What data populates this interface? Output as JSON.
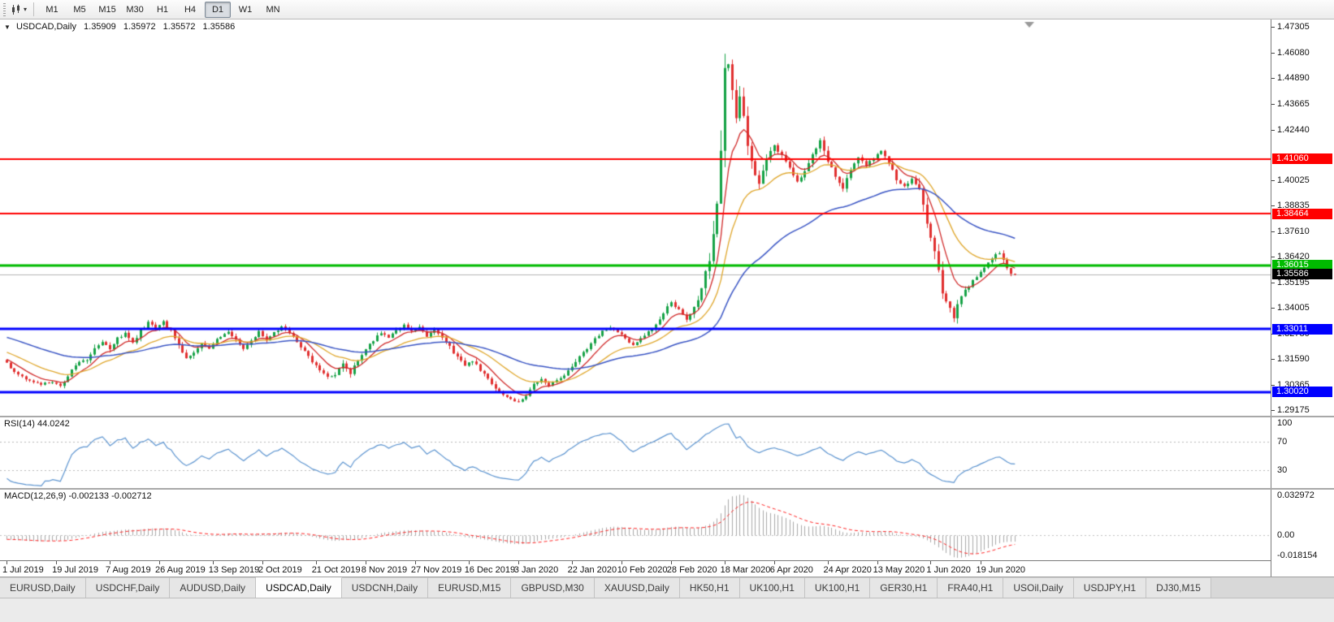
{
  "toolbar": {
    "timeframes": [
      "M1",
      "M5",
      "M15",
      "M30",
      "H1",
      "H4",
      "D1",
      "W1",
      "MN"
    ],
    "active_timeframe": "D1"
  },
  "chart_header": {
    "symbol_line": "USDCAD,Daily",
    "open": "1.35909",
    "high": "1.35972",
    "low": "1.35572",
    "close": "1.35586"
  },
  "chart_data": {
    "type": "candlestick",
    "symbol": "USDCAD",
    "timeframe": "Daily",
    "quote": {
      "open": 1.35909,
      "high": 1.35972,
      "low": 1.35572,
      "close": 1.35586
    },
    "y_range": [
      1.289,
      1.4765
    ],
    "candle_count": 265,
    "x_label_step": 13.42,
    "x_labels": [
      "1 Jul 2019",
      "19 Jul 2019",
      "7 Aug 2019",
      "26 Aug 2019",
      "13 Sep 2019",
      "2 Oct 2019",
      "21 Oct 2019",
      "8 Nov 2019",
      "27 Nov 2019",
      "16 Dec 2019",
      "3 Jan 2020",
      "22 Jan 2020",
      "10 Feb 2020",
      "28 Feb 2020",
      "18 Mar 2020",
      "6 Apr 2020",
      "24 Apr 2020",
      "13 May 2020",
      "1 Jun 2020",
      "19 Jun 2020"
    ],
    "close_anchors": [
      [
        0,
        1.3142
      ],
      [
        2,
        1.3095
      ],
      [
        5,
        1.306
      ],
      [
        9,
        1.304
      ],
      [
        12,
        1.3052
      ],
      [
        14,
        1.303
      ],
      [
        16,
        1.308
      ],
      [
        18,
        1.3135
      ],
      [
        21,
        1.3155
      ],
      [
        23,
        1.3215
      ],
      [
        25,
        1.3235
      ],
      [
        27,
        1.3205
      ],
      [
        29,
        1.3255
      ],
      [
        31,
        1.328
      ],
      [
        33,
        1.324
      ],
      [
        35,
        1.329
      ],
      [
        37,
        1.333
      ],
      [
        39,
        1.3305
      ],
      [
        41,
        1.3335
      ],
      [
        43,
        1.329
      ],
      [
        45,
        1.3225
      ],
      [
        47,
        1.3165
      ],
      [
        49,
        1.3185
      ],
      [
        51,
        1.3235
      ],
      [
        53,
        1.3205
      ],
      [
        55,
        1.3255
      ],
      [
        58,
        1.329
      ],
      [
        60,
        1.3245
      ],
      [
        62,
        1.321
      ],
      [
        64,
        1.325
      ],
      [
        66,
        1.3285
      ],
      [
        68,
        1.3245
      ],
      [
        70,
        1.328
      ],
      [
        72,
        1.331
      ],
      [
        74,
        1.3285
      ],
      [
        76,
        1.3245
      ],
      [
        78,
        1.3195
      ],
      [
        80,
        1.3145
      ],
      [
        82,
        1.3105
      ],
      [
        84,
        1.307
      ],
      [
        86,
        1.3085
      ],
      [
        88,
        1.3135
      ],
      [
        90,
        1.309
      ],
      [
        92,
        1.315
      ],
      [
        94,
        1.3205
      ],
      [
        96,
        1.3245
      ],
      [
        98,
        1.3285
      ],
      [
        100,
        1.326
      ],
      [
        102,
        1.3295
      ],
      [
        104,
        1.332
      ],
      [
        106,
        1.329
      ],
      [
        108,
        1.331
      ],
      [
        110,
        1.327
      ],
      [
        112,
        1.3295
      ],
      [
        114,
        1.3255
      ],
      [
        116,
        1.3215
      ],
      [
        118,
        1.3165
      ],
      [
        120,
        1.3125
      ],
      [
        122,
        1.315
      ],
      [
        124,
        1.3105
      ],
      [
        126,
        1.306
      ],
      [
        128,
        1.3015
      ],
      [
        130,
        1.2985
      ],
      [
        132,
        1.2965
      ],
      [
        134,
        1.2955
      ],
      [
        136,
        1.299
      ],
      [
        138,
        1.304
      ],
      [
        140,
        1.306
      ],
      [
        142,
        1.3035
      ],
      [
        144,
        1.3055
      ],
      [
        146,
        1.3085
      ],
      [
        148,
        1.312
      ],
      [
        150,
        1.3165
      ],
      [
        152,
        1.321
      ],
      [
        154,
        1.3255
      ],
      [
        156,
        1.329
      ],
      [
        158,
        1.331
      ],
      [
        160,
        1.3285
      ],
      [
        162,
        1.3255
      ],
      [
        164,
        1.3225
      ],
      [
        166,
        1.3255
      ],
      [
        168,
        1.3285
      ],
      [
        170,
        1.332
      ],
      [
        172,
        1.338
      ],
      [
        174,
        1.343
      ],
      [
        176,
        1.339
      ],
      [
        178,
        1.3345
      ],
      [
        180,
        1.3395
      ],
      [
        182,
        1.349
      ],
      [
        184,
        1.364
      ],
      [
        185,
        1.377
      ],
      [
        186,
        1.392
      ],
      [
        187,
        1.42
      ],
      [
        188,
        1.449
      ],
      [
        189,
        1.458
      ],
      [
        190,
        1.445
      ],
      [
        191,
        1.428
      ],
      [
        192,
        1.442
      ],
      [
        193,
        1.43
      ],
      [
        195,
        1.408
      ],
      [
        197,
        1.399
      ],
      [
        199,
        1.41
      ],
      [
        201,
        1.417
      ],
      [
        203,
        1.412
      ],
      [
        205,
        1.406
      ],
      [
        207,
        1.399
      ],
      [
        209,
        1.405
      ],
      [
        211,
        1.413
      ],
      [
        213,
        1.419
      ],
      [
        215,
        1.41
      ],
      [
        217,
        1.402
      ],
      [
        219,
        1.397
      ],
      [
        221,
        1.405
      ],
      [
        223,
        1.411
      ],
      [
        225,
        1.407
      ],
      [
        227,
        1.411
      ],
      [
        229,
        1.414
      ],
      [
        231,
        1.408
      ],
      [
        233,
        1.401
      ],
      [
        235,
        1.397
      ],
      [
        237,
        1.401
      ],
      [
        239,
        1.395
      ],
      [
        241,
        1.381
      ],
      [
        243,
        1.365
      ],
      [
        245,
        1.348
      ],
      [
        247,
        1.339
      ],
      [
        248,
        1.335
      ],
      [
        249,
        1.342
      ],
      [
        251,
        1.348
      ],
      [
        253,
        1.353
      ],
      [
        255,
        1.357
      ],
      [
        257,
        1.361
      ],
      [
        259,
        1.365
      ],
      [
        260,
        1.366
      ],
      [
        261,
        1.362
      ],
      [
        262,
        1.358
      ],
      [
        263,
        1.356
      ],
      [
        264,
        1.3559
      ]
    ],
    "candle_colors": {
      "up": "#16a246",
      "down": "#e12f2f"
    },
    "moving_averages": [
      {
        "name": "fast-ma",
        "period": 8,
        "color": "#d02a2a"
      },
      {
        "name": "medium-ma",
        "period": 21,
        "color": "#dfa62b"
      },
      {
        "name": "slow-ma",
        "period": 55,
        "color": "#3a55c4"
      }
    ],
    "price_levels": [
      {
        "price": 1.4106,
        "label": "1.41060",
        "color": "#ff0000",
        "width": 2
      },
      {
        "price": 1.38464,
        "label": "1.38464",
        "color": "#ff0000",
        "width": 2
      },
      {
        "price": 1.36015,
        "label": "1.36015",
        "color": "#00bb00",
        "width": 3
      },
      {
        "price": 1.33011,
        "label": "1.33011",
        "color": "#0000ff",
        "width": 3
      },
      {
        "price": 1.3002,
        "label": "1.30020",
        "color": "#0000ff",
        "width": 3
      }
    ],
    "current_price": {
      "value": 1.35586,
      "label": "1.35586",
      "tag_color": "#000000",
      "line_color": "#b4b4b4"
    },
    "price_axis_labels": [
      "1.47305",
      "1.46080",
      "1.44890",
      "1.43665",
      "1.42440",
      "1.40025",
      "1.38835",
      "1.37610",
      "1.36420",
      "1.35195",
      "1.34005",
      "1.32780",
      "1.31590",
      "1.30365",
      "1.29175"
    ],
    "indicators": {
      "rsi": {
        "label": "RSI(14) 44.0242",
        "period": 14,
        "value": 44.0242,
        "levels": [
          "100",
          "70",
          "30"
        ],
        "line_color": "#5b93cf"
      },
      "macd": {
        "label": "MACD(12,26,9) -0.002133 -0.002712",
        "fast": 12,
        "slow": 26,
        "signal": 9,
        "main_value": -0.002133,
        "signal_value": -0.002712,
        "axis_labels": [
          "0.032972",
          "0.00",
          "-0.018154"
        ],
        "range": [
          -0.019,
          0.0335
        ],
        "histogram_color": "#a8a8a8",
        "signal_color": "#ff2222"
      }
    }
  },
  "tabs": {
    "active_index": 3,
    "items": [
      "EURUSD,Daily",
      "USDCHF,Daily",
      "AUDUSD,Daily",
      "USDCAD,Daily",
      "USDCNH,Daily",
      "EURUSD,M15",
      "GBPUSD,M30",
      "XAUUSD,Daily",
      "HK50,H1",
      "UK100,H1",
      "UK100,H1",
      "GER30,H1",
      "FRA40,H1",
      "USOil,Daily",
      "USDJPY,H1",
      "DJ30,M15"
    ]
  }
}
